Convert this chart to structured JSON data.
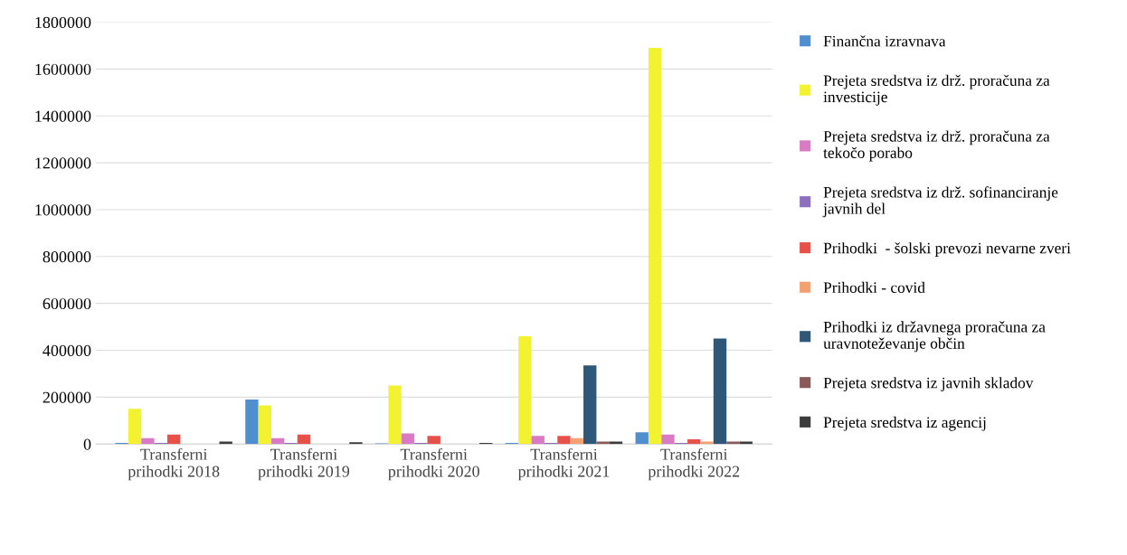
{
  "chart_data": {
    "type": "bar",
    "categories": [
      "Transferni\nprihodki 2018",
      "Transferni\nprihodki 2019",
      "Transferni\nprihodki 2020",
      "Transferni\nprihodki 2021",
      "Transferni\nprihodki 2022"
    ],
    "series": [
      {
        "name": "Finančna izravnava",
        "color": "#4f8fcf",
        "values": [
          5000,
          190000,
          3000,
          5000,
          50000
        ]
      },
      {
        "name": "Prejeta sredstva iz drž. proračuna za\ninvesticije",
        "color": "#f2f230",
        "values": [
          150000,
          165000,
          250000,
          460000,
          1690000
        ]
      },
      {
        "name": "Prejeta sredstva iz drž. proračuna za\ntekočo porabo",
        "color": "#d97bc4",
        "values": [
          25000,
          25000,
          45000,
          35000,
          40000
        ]
      },
      {
        "name": "Prejeta sredstva iz drž. sofinanciranje\njavnih del",
        "color": "#8e6fbf",
        "values": [
          5000,
          5000,
          5000,
          5000,
          5000
        ]
      },
      {
        "name": "Prihodki  - šolski prevozi nevarne zveri",
        "color": "#e8504a",
        "values": [
          40000,
          40000,
          35000,
          35000,
          20000
        ]
      },
      {
        "name": "Prihodki - covid",
        "color": "#f4a070",
        "values": [
          0,
          0,
          0,
          25000,
          10000
        ]
      },
      {
        "name": "Prihodki iz državnega proračuna za\nuravnoteževanje občin",
        "color": "#2f5878",
        "values": [
          0,
          0,
          0,
          335000,
          450000
        ]
      },
      {
        "name": "Prejeta sredstva iz javnih skladov",
        "color": "#8a5a5a",
        "values": [
          0,
          0,
          0,
          10000,
          10000
        ]
      },
      {
        "name": "Prejeta sredstva iz agencij",
        "color": "#3c3c3c",
        "values": [
          10000,
          8000,
          5000,
          10000,
          10000
        ]
      }
    ],
    "ylim": [
      0,
      1800000
    ],
    "yticks": [
      0,
      200000,
      400000,
      600000,
      800000,
      1000000,
      1200000,
      1400000,
      1600000,
      1800000
    ],
    "grid": "y",
    "legend": "right"
  }
}
